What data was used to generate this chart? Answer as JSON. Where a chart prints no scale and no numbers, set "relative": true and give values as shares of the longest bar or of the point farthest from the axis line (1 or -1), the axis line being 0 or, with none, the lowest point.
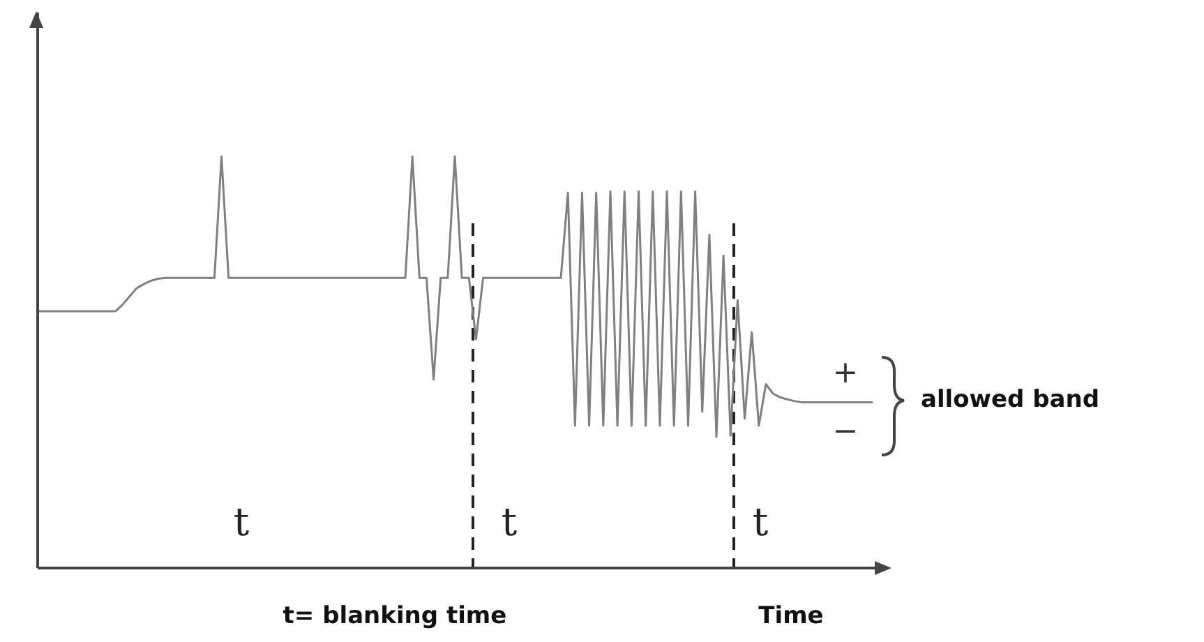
{
  "chart_data": {
    "type": "line",
    "relative": true,
    "categories": [
      null,
      null,
      null,
      null,
      null,
      null,
      null,
      null,
      null,
      null,
      null,
      null,
      null,
      null,
      null,
      null,
      null,
      null,
      null,
      null,
      null,
      null,
      null,
      null,
      null,
      null,
      null,
      null,
      null,
      null,
      null,
      null,
      null,
      null,
      null,
      null,
      null,
      null,
      null,
      null,
      null,
      null,
      null,
      null,
      null,
      null,
      null,
      null,
      null,
      null,
      null,
      null,
      null,
      null,
      null,
      null,
      null,
      null,
      null,
      null,
      null,
      null,
      null,
      null,
      null,
      null,
      null,
      null,
      null,
      null,
      null,
      null,
      null,
      null,
      null,
      null,
      null,
      null,
      null,
      null,
      null,
      null,
      null,
      null,
      null,
      null,
      null,
      null,
      null,
      null,
      null,
      null,
      null,
      null,
      null,
      null,
      null,
      null,
      null,
      null,
      null,
      null,
      null,
      null,
      null,
      null,
      null,
      null,
      null,
      null,
      null,
      null,
      null,
      null,
      null,
      null,
      null,
      null,
      null
    ],
    "series": [
      {
        "color": "#808080",
        "values": [
          0.624,
          0.624,
          0.624,
          0.624,
          0.624,
          0.624,
          0.624,
          0.624,
          0.624,
          0.624,
          0.624,
          0.624,
          0.64,
          0.66,
          0.68,
          0.69,
          0.698,
          0.703,
          0.705,
          0.705,
          0.705,
          0.705,
          0.705,
          0.705,
          0.705,
          0.705,
          1,
          0.705,
          0.705,
          0.705,
          0.705,
          0.705,
          0.705,
          0.705,
          0.705,
          0.705,
          0.705,
          0.705,
          0.705,
          0.705,
          0.705,
          0.705,
          0.705,
          0.705,
          0.705,
          0.705,
          0.705,
          0.705,
          0.705,
          0.705,
          0.705,
          0.705,
          0.705,
          1,
          0.705,
          0.705,
          0.458,
          0.705,
          0.705,
          1,
          0.705,
          0.705,
          0.556,
          0.705,
          0.705,
          0.705,
          0.705,
          0.705,
          0.705,
          0.705,
          0.705,
          0.705,
          0.705,
          0.705,
          0.705,
          0.912,
          0.346,
          0.912,
          0.346,
          0.912,
          0.346,
          0.915,
          0.346,
          0.915,
          0.346,
          0.915,
          0.346,
          0.915,
          0.346,
          0.915,
          0.346,
          0.915,
          0.346,
          0.915,
          0.38,
          0.81,
          0.319,
          0.759,
          0.322,
          0.651,
          0.363,
          0.573,
          0.346,
          0.447,
          0.424,
          0.415,
          0.41,
          0.406,
          0.403,
          0.403,
          0.403,
          0.403,
          0.403,
          0.403,
          0.403,
          0.403,
          0.403,
          0.403,
          0.403
        ]
      }
    ],
    "annotations": [
      "t= blanking time",
      "allowed band",
      "Time",
      "t",
      "t",
      "t",
      "+",
      "−"
    ]
  }
}
